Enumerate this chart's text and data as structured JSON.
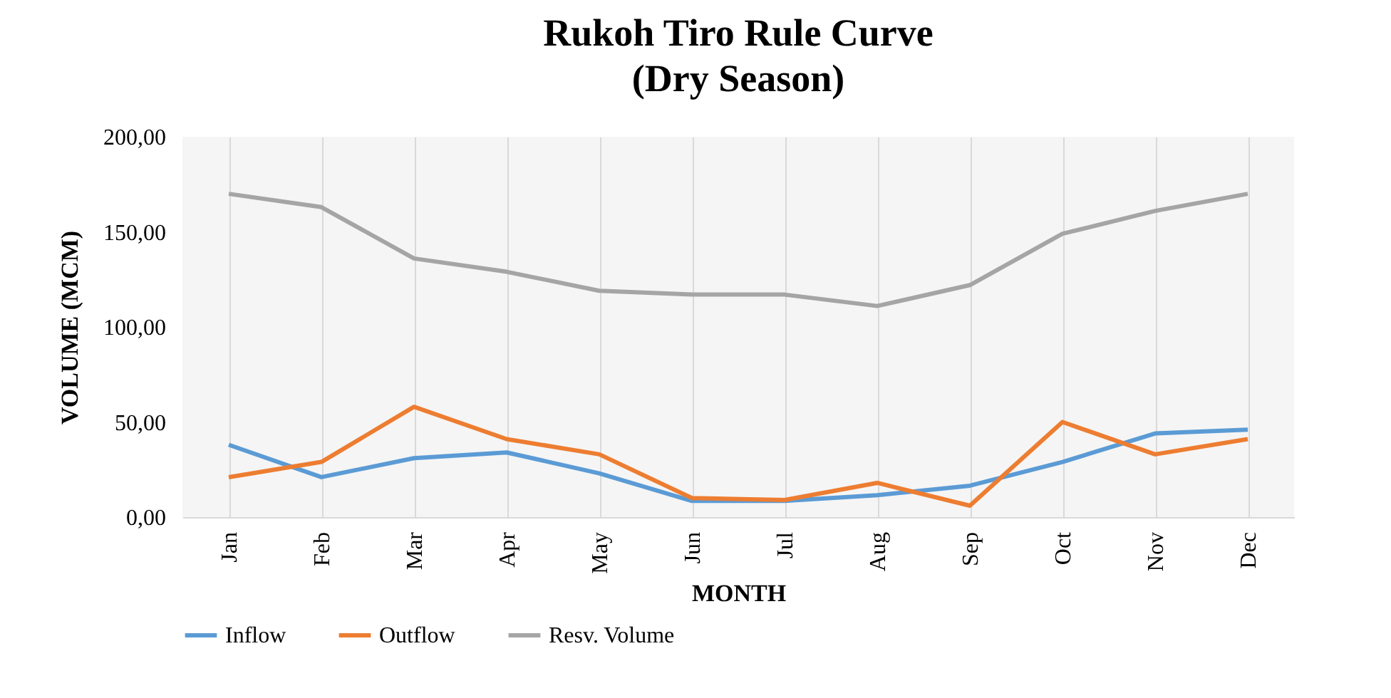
{
  "chart_data": {
    "type": "line",
    "title": [
      "Rukoh Tiro Rule Curve",
      "(Dry Season)"
    ],
    "xlabel": "MONTH",
    "ylabel": "VOLUME (MCM)",
    "categories": [
      "Jan",
      "Feb",
      "Mar",
      "Apr",
      "May",
      "Jun",
      "Jul",
      "Aug",
      "Sep",
      "Oct",
      "Nov",
      "Dec"
    ],
    "series": [
      {
        "name": "Inflow",
        "color": "#5b9bd5",
        "values": [
          38,
          21,
          31,
          34,
          23,
          8.5,
          8.5,
          11.5,
          16.5,
          29,
          44,
          46
        ]
      },
      {
        "name": "Outflow",
        "color": "#ed7d31",
        "values": [
          21,
          29,
          58,
          41,
          33,
          10,
          9,
          18,
          6,
          50,
          33,
          41
        ]
      },
      {
        "name": "Resv. Volume",
        "color": "#a5a5a5",
        "values": [
          170,
          163,
          136,
          129,
          119,
          117,
          117,
          111,
          122,
          149,
          161,
          170
        ]
      }
    ],
    "ylim": [
      0,
      200
    ],
    "yticks": [
      {
        "value": 0,
        "label": "0,00"
      },
      {
        "value": 50,
        "label": "50,00"
      },
      {
        "value": 100,
        "label": "100,00"
      },
      {
        "value": 150,
        "label": "150,00"
      },
      {
        "value": 200,
        "label": "200,00"
      }
    ],
    "grid": "x",
    "legend": "bottom",
    "marker": "none",
    "line_style": "solid"
  }
}
